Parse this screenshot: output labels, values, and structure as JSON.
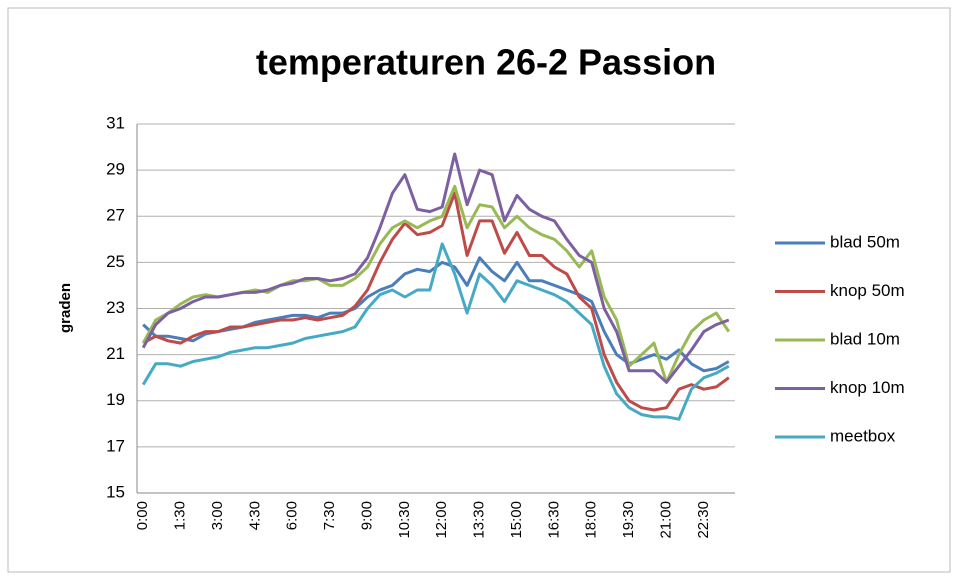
{
  "chart_data": {
    "type": "line",
    "title": "temperaturen 26-2 Passion",
    "y_label": "graden",
    "categories": [
      "0:00",
      null,
      null,
      "1:30",
      null,
      null,
      "3:00",
      null,
      null,
      "4:30",
      null,
      null,
      "6:00",
      null,
      null,
      "7:30",
      null,
      null,
      "9:00",
      null,
      null,
      "10:30",
      null,
      null,
      "12:00",
      null,
      null,
      "13:30",
      null,
      null,
      "15:00",
      null,
      null,
      "16:30",
      null,
      null,
      "18:00",
      null,
      null,
      "19:30",
      null,
      null,
      "21:00",
      null,
      null,
      "22:30",
      null,
      null
    ],
    "ylim": [
      15,
      31
    ],
    "yticks": [
      15,
      17,
      19,
      21,
      23,
      25,
      27,
      29,
      31
    ],
    "grid": true,
    "legend": "right",
    "series": [
      {
        "name": "blad 50m",
        "color": "#4a7ebb",
        "values": [
          22.3,
          21.8,
          21.8,
          21.7,
          21.6,
          21.9,
          22.0,
          22.1,
          22.2,
          22.4,
          22.5,
          22.6,
          22.7,
          22.7,
          22.6,
          22.8,
          22.8,
          23.0,
          23.5,
          23.8,
          24.0,
          24.5,
          24.7,
          24.6,
          25.0,
          24.8,
          24.0,
          25.2,
          24.6,
          24.2,
          25.0,
          24.2,
          24.2,
          24.0,
          23.8,
          23.6,
          23.3,
          22.0,
          21.0,
          20.6,
          20.8,
          21.0,
          20.8,
          21.2,
          20.6,
          20.3,
          20.4,
          20.7
        ]
      },
      {
        "name": "knop 50m",
        "color": "#be4b48",
        "values": [
          21.5,
          21.8,
          21.6,
          21.5,
          21.8,
          22.0,
          22.0,
          22.2,
          22.2,
          22.3,
          22.4,
          22.5,
          22.5,
          22.6,
          22.5,
          22.6,
          22.7,
          23.1,
          23.8,
          25.0,
          26.0,
          26.7,
          26.2,
          26.3,
          26.6,
          28.0,
          25.3,
          26.8,
          26.8,
          25.4,
          26.3,
          25.3,
          25.3,
          24.8,
          24.5,
          23.5,
          23.0,
          21.0,
          19.8,
          19.0,
          18.7,
          18.6,
          18.7,
          19.5,
          19.7,
          19.5,
          19.6,
          20.0
        ]
      },
      {
        "name": "blad 10m",
        "color": "#98b954",
        "values": [
          21.5,
          22.5,
          22.8,
          23.2,
          23.5,
          23.6,
          23.5,
          23.6,
          23.7,
          23.8,
          23.7,
          24.0,
          24.2,
          24.2,
          24.3,
          24.0,
          24.0,
          24.3,
          24.8,
          25.8,
          26.5,
          26.8,
          26.5,
          26.8,
          27.0,
          28.3,
          26.5,
          27.5,
          27.4,
          26.5,
          27.0,
          26.5,
          26.2,
          26.0,
          25.5,
          24.8,
          25.5,
          23.5,
          22.5,
          20.5,
          21.0,
          21.5,
          19.8,
          21.0,
          22.0,
          22.5,
          22.8,
          22.0
        ]
      },
      {
        "name": "knop 10m",
        "color": "#7d60a0",
        "values": [
          21.3,
          22.3,
          22.8,
          23.0,
          23.3,
          23.5,
          23.5,
          23.6,
          23.7,
          23.7,
          23.8,
          24.0,
          24.1,
          24.3,
          24.3,
          24.2,
          24.3,
          24.5,
          25.2,
          26.5,
          28.0,
          28.8,
          27.3,
          27.2,
          27.4,
          29.7,
          27.5,
          29.0,
          28.8,
          26.8,
          27.9,
          27.3,
          27.0,
          26.8,
          26.0,
          25.3,
          25.0,
          23.0,
          22.0,
          20.3,
          20.3,
          20.3,
          19.8,
          20.5,
          21.2,
          22.0,
          22.3,
          22.5
        ]
      },
      {
        "name": "meetbox",
        "color": "#46aac5",
        "values": [
          19.7,
          20.6,
          20.6,
          20.5,
          20.7,
          20.8,
          20.9,
          21.1,
          21.2,
          21.3,
          21.3,
          21.4,
          21.5,
          21.7,
          21.8,
          21.9,
          22.0,
          22.2,
          23.0,
          23.6,
          23.8,
          23.5,
          23.8,
          23.8,
          25.8,
          24.5,
          22.8,
          24.5,
          24.0,
          23.3,
          24.2,
          24.0,
          23.8,
          23.6,
          23.3,
          22.8,
          22.3,
          20.5,
          19.3,
          18.7,
          18.4,
          18.3,
          18.3,
          18.2,
          19.5,
          20.0,
          20.2,
          20.5
        ]
      }
    ]
  }
}
